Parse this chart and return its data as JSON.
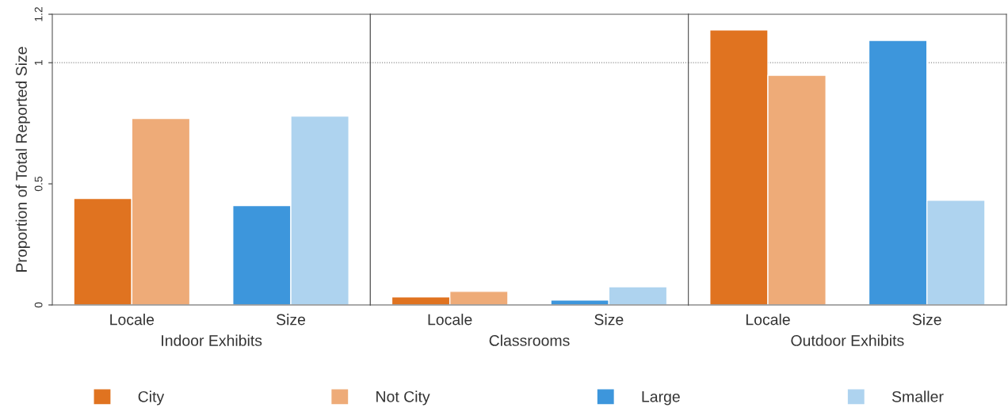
{
  "chart_data": [
    {
      "type": "bar",
      "xlabel": "Indoor Exhibits",
      "ylabel": "Proportion of Total Reported Size",
      "categories": [
        "Locale",
        "Size"
      ],
      "ylim": [
        0,
        1.2
      ],
      "yticks": [
        0,
        0.5,
        1,
        1.2
      ],
      "grid": false,
      "legend": "bottom",
      "ref_lines": [
        {
          "axis": "y",
          "value": 1,
          "line_style": "dotted",
          "color": "#888888"
        }
      ],
      "series": [
        {
          "name": "City",
          "color": "#e07320",
          "values": [
            0.44,
            null
          ]
        },
        {
          "name": "Not City",
          "color": "#eeab78",
          "values": [
            0.77,
            null
          ]
        },
        {
          "name": "Large",
          "color": "#3d96dc",
          "values": [
            null,
            0.41
          ]
        },
        {
          "name": "Smaller",
          "color": "#aed3ef",
          "values": [
            null,
            0.78
          ]
        }
      ]
    },
    {
      "type": "bar",
      "xlabel": "Classrooms",
      "categories": [
        "Locale",
        "Size"
      ],
      "ylim": [
        0,
        1.2
      ],
      "yticks": [
        0,
        0.5,
        1,
        1.2
      ],
      "tick_labels": "x",
      "grid": false,
      "ref_lines": [
        {
          "axis": "y",
          "value": 1,
          "line_style": "dotted",
          "color": "#888888"
        }
      ],
      "series": [
        {
          "color": "#e07320",
          "values": [
            0.033,
            null
          ]
        },
        {
          "color": "#eeab78",
          "values": [
            0.056,
            null
          ]
        },
        {
          "color": "#3d96dc",
          "values": [
            null,
            0.02
          ]
        },
        {
          "color": "#aed3ef",
          "values": [
            null,
            0.075
          ]
        }
      ]
    },
    {
      "type": "bar",
      "xlabel": "Outdoor Exhibits",
      "categories": [
        "Locale",
        "Size"
      ],
      "ylim": [
        0,
        1.2
      ],
      "yticks": [
        0,
        0.5,
        1,
        1.2
      ],
      "tick_labels": "x",
      "grid": false,
      "ref_lines": [
        {
          "axis": "y",
          "value": 1,
          "line_style": "dotted",
          "color": "#888888"
        }
      ],
      "series": [
        {
          "color": "#e07320",
          "values": [
            1.135,
            null
          ]
        },
        {
          "color": "#eeab78",
          "values": [
            0.948,
            null
          ]
        },
        {
          "color": "#3d96dc",
          "values": [
            null,
            1.092
          ]
        },
        {
          "color": "#aed3ef",
          "values": [
            null,
            0.432
          ]
        }
      ]
    }
  ]
}
